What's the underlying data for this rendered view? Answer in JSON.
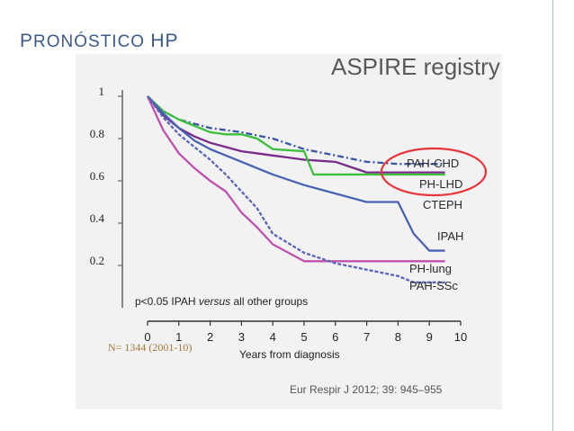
{
  "slide": {
    "title_first": "P",
    "title_rest": "RONÓSTICO",
    "title_hp": "HP",
    "colors": {
      "title": "#3b5a8a",
      "rule": "#9ec3d8",
      "highlight": "#e8343a"
    }
  },
  "chart_data": {
    "type": "line",
    "title": "ASPIRE registry",
    "xlabel": "Years from diagnosis",
    "ylabel": "",
    "xlim": [
      0,
      10
    ],
    "ylim": [
      0,
      1
    ],
    "xticks": [
      "0",
      "1",
      "2",
      "3",
      "4",
      "5",
      "6",
      "7",
      "8",
      "9",
      "10"
    ],
    "yticks": [
      {
        "value": 1,
        "label": "1"
      },
      {
        "value": 0.8,
        "label": "0.8"
      },
      {
        "value": 0.6,
        "label": "0.6"
      },
      {
        "value": 0.4,
        "label": "0.4"
      },
      {
        "value": 0.2,
        "label": "0.2"
      }
    ],
    "annotation_prefix": "p<0.05 IPAH ",
    "annotation_italic": "versus",
    "annotation_suffix": " all other groups",
    "sample_note": "N= 1344 (2001-10)",
    "citation": "Eur Respir J 2012; 39: 945–955",
    "highlighted": [
      "PAH-CHD",
      "PH-LHD"
    ],
    "series": [
      {
        "name": "PAH-CHD",
        "color": "#3a55a8",
        "dash": "dashdot",
        "x": [
          0,
          0.5,
          1,
          1.5,
          2,
          3,
          4,
          5,
          6,
          7,
          8,
          9,
          9.5
        ],
        "y": [
          1,
          0.93,
          0.89,
          0.87,
          0.85,
          0.83,
          0.8,
          0.75,
          0.72,
          0.69,
          0.68,
          0.68,
          0.68
        ]
      },
      {
        "name": "PH-LHD",
        "color": "#7a2a8a",
        "dash": "solid",
        "x": [
          0,
          0.5,
          1,
          1.5,
          2,
          3,
          4,
          5,
          6,
          7,
          8,
          8.5,
          9,
          9.5
        ],
        "y": [
          1,
          0.91,
          0.85,
          0.81,
          0.78,
          0.74,
          0.72,
          0.7,
          0.69,
          0.64,
          0.64,
          0.64,
          0.64,
          0.64
        ]
      },
      {
        "name": "CTEPH",
        "color": "#3cbf3c",
        "dash": "solid",
        "x": [
          0,
          0.5,
          1,
          1.5,
          2,
          2.5,
          3,
          3.5,
          4,
          5,
          5.3,
          6,
          7,
          7.5,
          9.5
        ],
        "y": [
          1,
          0.93,
          0.89,
          0.86,
          0.83,
          0.82,
          0.82,
          0.8,
          0.75,
          0.74,
          0.63,
          0.63,
          0.63,
          0.63,
          0.63
        ]
      },
      {
        "name": "IPAH",
        "color": "#4a62b4",
        "dash": "solid",
        "x": [
          0,
          0.5,
          1,
          1.5,
          2,
          3,
          4,
          5,
          6,
          7,
          8,
          8.5,
          9,
          9.5
        ],
        "y": [
          1,
          0.92,
          0.85,
          0.79,
          0.75,
          0.69,
          0.63,
          0.58,
          0.54,
          0.5,
          0.5,
          0.35,
          0.27,
          0.27
        ]
      },
      {
        "name": "PH-lung",
        "color": "#c050b0",
        "dash": "solid",
        "x": [
          0,
          0.5,
          1,
          1.5,
          2,
          2.5,
          3,
          3.5,
          4,
          5,
          6,
          7,
          8,
          9,
          9.5
        ],
        "y": [
          1,
          0.84,
          0.73,
          0.66,
          0.6,
          0.55,
          0.45,
          0.38,
          0.3,
          0.22,
          0.22,
          0.22,
          0.22,
          0.22,
          0.22
        ]
      },
      {
        "name": "PAH-SSc",
        "color": "#5a64b8",
        "dash": "dashed",
        "x": [
          0,
          0.5,
          1,
          1.5,
          2,
          2.5,
          3,
          3.5,
          4,
          5,
          6,
          7,
          8,
          8.5,
          9.5
        ],
        "y": [
          1,
          0.9,
          0.82,
          0.76,
          0.7,
          0.63,
          0.55,
          0.47,
          0.35,
          0.26,
          0.21,
          0.18,
          0.15,
          0.12,
          0.12
        ]
      }
    ]
  }
}
